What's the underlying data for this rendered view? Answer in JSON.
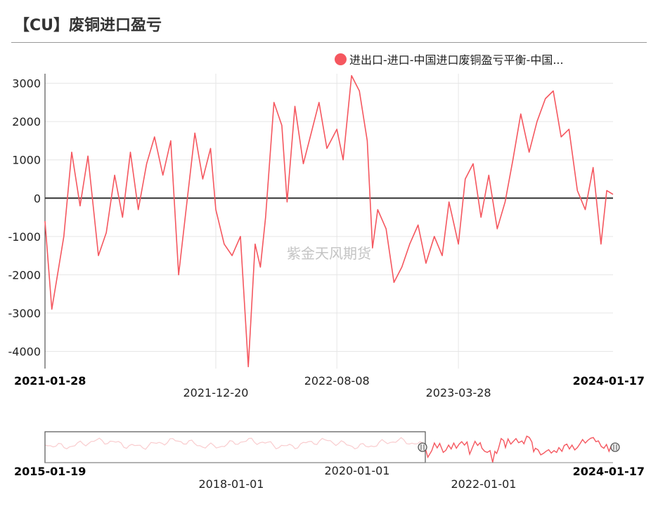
{
  "title": "【CU】废铜进口盈亏",
  "legend": {
    "label": "进出口-进口-中国进口废铜盈亏平衡-中国...",
    "color": "#f5575f"
  },
  "watermark": "紫金天风期货",
  "chart_data": {
    "type": "line",
    "title": "【CU】废铜进口盈亏",
    "series_name": "进出口-进口-中国进口废铜盈亏平衡-中国...",
    "color": "#f5575f",
    "y_ticks": [
      "3000",
      "2000",
      "1000",
      "0",
      "-1000",
      "-2000",
      "-3000",
      "-4000"
    ],
    "ylim": [
      -4450,
      3250
    ],
    "x_range": [
      "2021-01-28",
      "2024-01-17"
    ],
    "x_labels": [
      "2021-01-28",
      "2021-12-20",
      "2022-08-08",
      "2023-03-28",
      "2024-01-17"
    ],
    "zero_line": true,
    "grid": true,
    "x": [
      "2021-01-28",
      "2021-02-10",
      "2021-03-05",
      "2021-03-20",
      "2021-04-05",
      "2021-04-20",
      "2021-05-10",
      "2021-05-25",
      "2021-06-10",
      "2021-06-25",
      "2021-07-10",
      "2021-07-25",
      "2021-08-10",
      "2021-08-25",
      "2021-09-10",
      "2021-09-25",
      "2021-10-10",
      "2021-10-25",
      "2021-11-10",
      "2021-11-25",
      "2021-12-10",
      "2021-12-20",
      "2022-01-05",
      "2022-01-20",
      "2022-02-05",
      "2022-02-20",
      "2022-03-05",
      "2022-03-15",
      "2022-03-25",
      "2022-04-10",
      "2022-04-25",
      "2022-05-05",
      "2022-05-20",
      "2022-06-05",
      "2022-06-20",
      "2022-07-05",
      "2022-07-20",
      "2022-08-08",
      "2022-08-20",
      "2022-09-05",
      "2022-09-20",
      "2022-10-05",
      "2022-10-15",
      "2022-10-25",
      "2022-11-10",
      "2022-11-25",
      "2022-12-10",
      "2022-12-25",
      "2023-01-10",
      "2023-01-25",
      "2023-02-10",
      "2023-02-25",
      "2023-03-10",
      "2023-03-28",
      "2023-04-10",
      "2023-04-25",
      "2023-05-10",
      "2023-05-25",
      "2023-06-10",
      "2023-06-25",
      "2023-07-10",
      "2023-07-25",
      "2023-08-10",
      "2023-08-25",
      "2023-09-10",
      "2023-09-25",
      "2023-10-10",
      "2023-10-25",
      "2023-11-10",
      "2023-11-25",
      "2023-12-10",
      "2023-12-25",
      "2024-01-05",
      "2024-01-17"
    ],
    "y": [
      -600,
      -2900,
      -1000,
      1200,
      -200,
      1100,
      -1500,
      -900,
      600,
      -500,
      1200,
      -300,
      900,
      1600,
      600,
      1500,
      -2000,
      -200,
      1700,
      500,
      1300,
      -300,
      -1200,
      -1500,
      -1000,
      -4400,
      -1200,
      -1800,
      -500,
      2500,
      1900,
      -100,
      2400,
      900,
      1700,
      2500,
      1300,
      1800,
      1000,
      3200,
      2800,
      1500,
      -1300,
      -300,
      -800,
      -2200,
      -1800,
      -1200,
      -700,
      -1700,
      -1000,
      -1500,
      -100,
      -1200,
      500,
      900,
      -500,
      600,
      -800,
      -100,
      1000,
      2200,
      1200,
      2000,
      2600,
      2800,
      1600,
      1800,
      200,
      -300,
      800,
      -1200,
      200,
      100
    ]
  },
  "navigator": {
    "start_label": "2015-01-19",
    "end_label": "2024-01-17",
    "labels": [
      "2018-01-01",
      "2020-01-01",
      "2022-01-01"
    ]
  }
}
